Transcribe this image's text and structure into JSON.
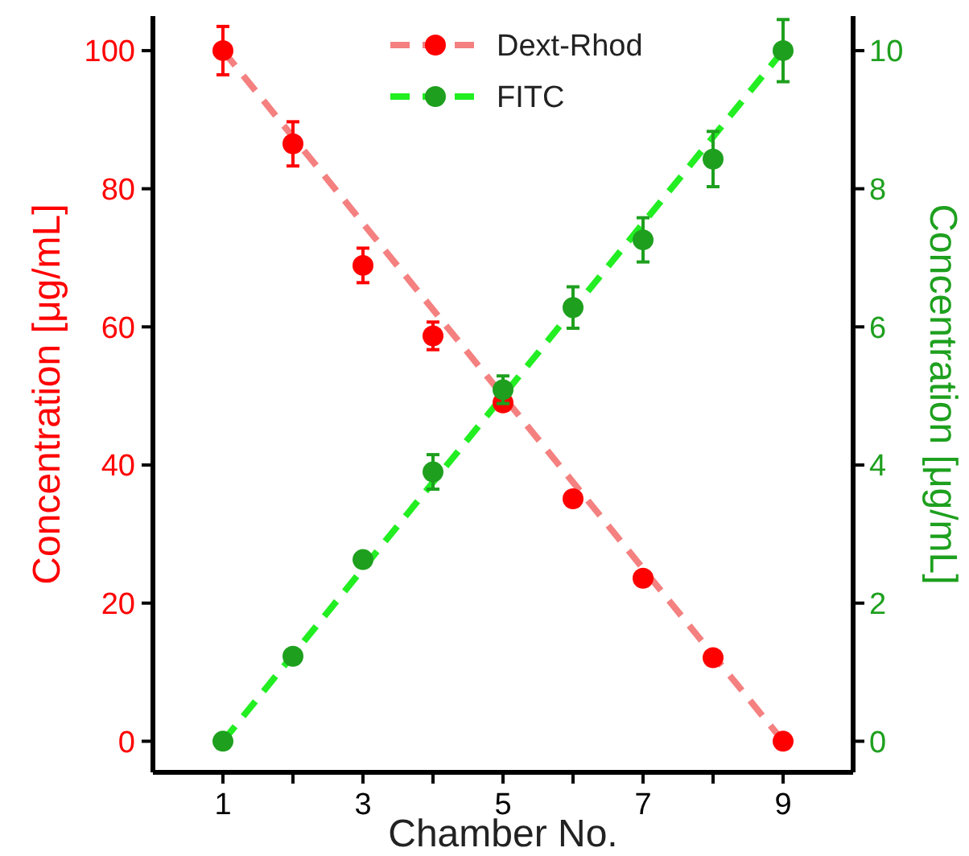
{
  "chart_data": {
    "type": "scatter",
    "xlabel": "Chamber No.",
    "ylabel": "Concentration [μg/mL]",
    "y2label": "Concentration [μg/mL]",
    "xlim": [
      0,
      10
    ],
    "xticks": [
      1,
      {
        "value": 2,
        "label": null
      },
      3,
      {
        "value": 4,
        "label": null
      },
      5,
      {
        "value": 6,
        "label": null
      },
      7,
      {
        "value": 8,
        "label": null
      },
      9
    ],
    "ylim": [
      -4.5,
      105
    ],
    "yticks": [
      0,
      20,
      40,
      60,
      80,
      100
    ],
    "y2lim": [
      -0.45,
      10.5
    ],
    "y2ticks": [
      0,
      2,
      4,
      6,
      8,
      10
    ],
    "grid": false,
    "legend": "top",
    "marker": "circle",
    "series": [
      {
        "name": "Dext-Rhod",
        "axis": "y",
        "color": "#ff0000",
        "x": [
          1,
          2,
          3,
          4,
          5,
          6,
          7,
          8,
          9
        ],
        "values": [
          100,
          86.5,
          68.9,
          58.7,
          49.0,
          35.1,
          23.6,
          12.1,
          0
        ],
        "errors": [
          3.5,
          3.2,
          2.5,
          2,
          1,
          null,
          null,
          null,
          null
        ]
      },
      {
        "type": "line",
        "axis": "y",
        "color": "#f48080",
        "line_style": "dashed",
        "marker": "none",
        "x": [
          1,
          9
        ],
        "values": [
          100,
          0
        ]
      },
      {
        "name": "FITC",
        "axis": "y2",
        "color": "#1ea01e",
        "x": [
          1,
          2,
          3,
          4,
          5,
          6,
          7,
          8,
          9
        ],
        "values": [
          0,
          1.23,
          2.63,
          3.9,
          5.09,
          6.28,
          7.26,
          8.43,
          10
        ],
        "errors": [
          null,
          null,
          null,
          0.25,
          0.2,
          0.3,
          0.32,
          0.4,
          0.45
        ]
      },
      {
        "type": "line",
        "axis": "y2",
        "color": "#22ee22",
        "line_style": "dashed",
        "marker": "none",
        "x": [
          1,
          9
        ],
        "values": [
          0,
          10
        ]
      }
    ]
  }
}
